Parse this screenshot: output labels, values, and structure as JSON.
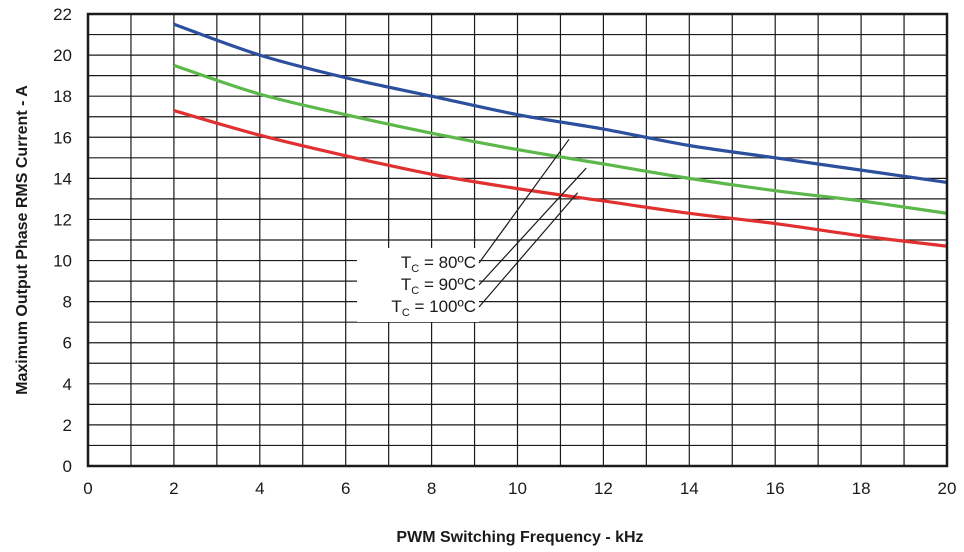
{
  "chart_data": {
    "type": "line",
    "title": "",
    "xlabel": "PWM Switching Frequency - kHz",
    "ylabel": "Maximum Output Phase RMS Current - A",
    "xlim": [
      0,
      20
    ],
    "ylim": [
      0,
      22
    ],
    "x_ticks": [
      0,
      2,
      4,
      6,
      8,
      10,
      12,
      14,
      16,
      18,
      20
    ],
    "y_ticks": [
      0,
      2,
      4,
      6,
      8,
      10,
      12,
      14,
      16,
      18,
      20,
      22
    ],
    "grid": true,
    "series": [
      {
        "name": "TC = 80ºC",
        "color": "#2c4f9e",
        "x": [
          2,
          4,
          6,
          8,
          10,
          12,
          14,
          16,
          18,
          20
        ],
        "y": [
          21.5,
          20.0,
          18.9,
          18.0,
          17.1,
          16.4,
          15.6,
          15.0,
          14.4,
          13.8
        ]
      },
      {
        "name": "TC = 90ºC",
        "color": "#5cb84a",
        "x": [
          2,
          4,
          6,
          8,
          10,
          12,
          14,
          16,
          18,
          20
        ],
        "y": [
          19.5,
          18.1,
          17.1,
          16.2,
          15.4,
          14.7,
          14.0,
          13.4,
          12.9,
          12.3
        ]
      },
      {
        "name": "TC = 100ºC",
        "color": "#e03030",
        "x": [
          2,
          4,
          6,
          8,
          10,
          12,
          14,
          16,
          18,
          20
        ],
        "y": [
          17.3,
          16.1,
          15.1,
          14.2,
          13.5,
          12.9,
          12.3,
          11.8,
          11.2,
          10.7
        ]
      }
    ],
    "annotation": {
      "labels": [
        {
          "main": "T",
          "sub": "C",
          "rest": " = 80ºC"
        },
        {
          "main": "T",
          "sub": "C",
          "rest": " = 90ºC"
        },
        {
          "main": "T",
          "sub": "C",
          "rest": " = 100ºC"
        }
      ]
    }
  }
}
